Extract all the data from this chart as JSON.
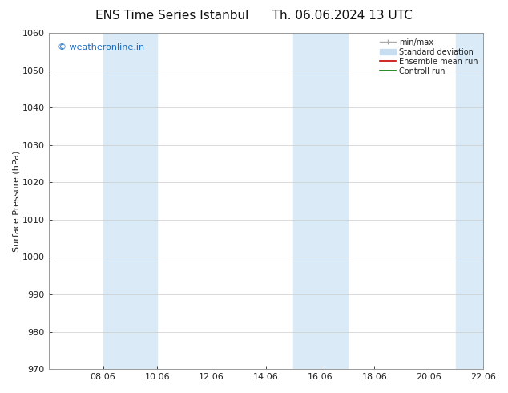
{
  "title_left": "ENS Time Series Istanbul",
  "title_right": "Th. 06.06.2024 13 UTC",
  "ylabel": "Surface Pressure (hPa)",
  "ylim": [
    970,
    1060
  ],
  "yticks": [
    970,
    980,
    990,
    1000,
    1010,
    1020,
    1030,
    1040,
    1050,
    1060
  ],
  "xtick_labels": [
    "08.06",
    "10.06",
    "12.06",
    "14.06",
    "16.06",
    "18.06",
    "20.06",
    "22.06"
  ],
  "xtick_positions": [
    2,
    4,
    6,
    8,
    10,
    12,
    14,
    16
  ],
  "xlim": [
    0,
    16
  ],
  "shade_ranges": [
    [
      2.0,
      4.0
    ],
    [
      9.0,
      11.0
    ],
    [
      15.0,
      16.0
    ]
  ],
  "shade_color": "#daeaf6",
  "watermark_text": "© weatheronline.in",
  "watermark_color": "#1a6bbf",
  "bg_color": "#ffffff",
  "minmax_color": "#aaaaaa",
  "std_color": "#c8ddf0",
  "ens_color": "#cc0000",
  "ctrl_color": "#007700",
  "spine_color": "#999999",
  "tick_color": "#222222",
  "grid_color": "#cccccc",
  "title_fontsize": 11,
  "label_fontsize": 8,
  "tick_fontsize": 8,
  "legend_fontsize": 7,
  "watermark_fontsize": 8
}
